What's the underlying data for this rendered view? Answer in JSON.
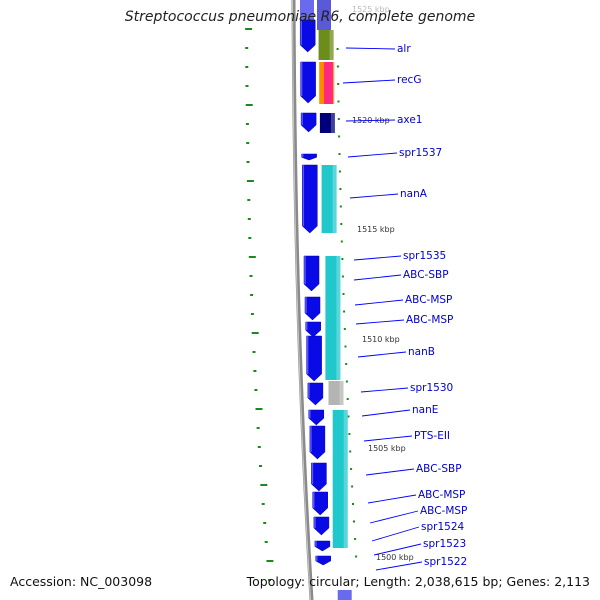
{
  "title": "Streptococcus pneumoniae R6, complete genome",
  "footer": {
    "accession": "Accession: NC_003098",
    "summary": "Topology: circular; Length: 2,038,615 bp; Genes: 2,113"
  },
  "colors": {
    "backbone": "#8a8a8a",
    "cds": "#0a0ae6",
    "cds_dark": "#00007a",
    "cyan": "#20c8cc",
    "olive": "#6c8c1c",
    "orange": "#ff8c00",
    "magenta": "#ff2a80",
    "gray": "#b4b4b4",
    "green_tick": "#1a8a1a",
    "label": "#0000cc",
    "leader": "#0000ff",
    "bg": "#ffffff"
  },
  "kbp_labels": [
    "1525 kbp",
    "1520 kbp",
    "1515 kbp",
    "1510 kbp",
    "1505 kbp",
    "1500 kbp"
  ],
  "genes": [
    {
      "label": "alr"
    },
    {
      "label": "recG"
    },
    {
      "label": "axe1"
    },
    {
      "label": "spr1537"
    },
    {
      "label": "nanA"
    },
    {
      "label": "spr1535"
    },
    {
      "label": "ABC-SBP"
    },
    {
      "label": "ABC-MSP"
    },
    {
      "label": "ABC-MSP"
    },
    {
      "label": "nanB"
    },
    {
      "label": "spr1530"
    },
    {
      "label": "nanE"
    },
    {
      "label": "PTS-EII"
    },
    {
      "label": "ABC-SBP"
    },
    {
      "label": "ABC-MSP"
    },
    {
      "label": "ABC-MSP"
    },
    {
      "label": "spr1524"
    },
    {
      "label": "spr1523"
    },
    {
      "label": "spr1522"
    }
  ]
}
